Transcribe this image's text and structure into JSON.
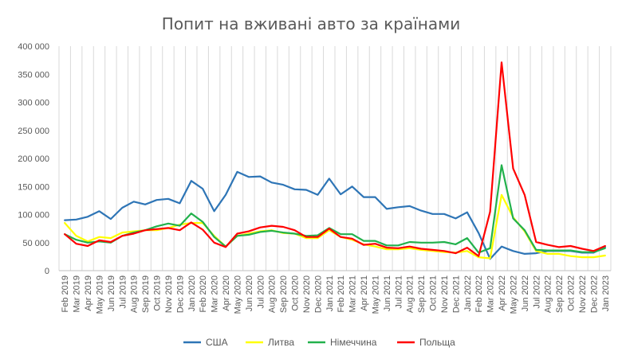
{
  "chart_data": {
    "type": "line",
    "title": "Попит на вживані авто за країнами",
    "xlabel": "",
    "ylabel": "",
    "ylim": [
      0,
      400000
    ],
    "y_ticks": [
      "0",
      "50 000",
      "100 000",
      "150 000",
      "200 000",
      "250 000",
      "300 000",
      "350 000",
      "400 000"
    ],
    "y_tick_values": [
      0,
      50000,
      100000,
      150000,
      200000,
      250000,
      300000,
      350000,
      400000
    ],
    "grid": "vertical",
    "legend_position": "bottom",
    "categories": [
      "Feb 2019",
      "Mar 2019",
      "Apr 2019",
      "May 2019",
      "Jun 2019",
      "Jul 2019",
      "Aug 2019",
      "Sep 2019",
      "Oct 2019",
      "Nov 2019",
      "Dec 2019",
      "Jan 2020",
      "Feb 2020",
      "Mar 2020",
      "Apr 2020",
      "May 2020",
      "Jun 2020",
      "Jul 2020",
      "Aug 2020",
      "Sep 2020",
      "Oct 2020",
      "Nov 2020",
      "Dec 2020",
      "Jan 2021",
      "Feb 2021",
      "Mar 2021",
      "Apr 2021",
      "May 2021",
      "Jun 2021",
      "Jul 2021",
      "Aug 2021",
      "Sep 2021",
      "Oct 2021",
      "Nov 2021",
      "Dec 2021",
      "Jan 2022",
      "Feb 2022",
      "Mar 2022",
      "Apr 2022",
      "May 2022",
      "Jun 2022",
      "Jul 2022",
      "Aug 2022",
      "Sep 2022",
      "Oct 2022",
      "Nov 2022",
      "Dec 2022",
      "Jan 2023"
    ],
    "series": [
      {
        "name": "США",
        "color": "#2E75B6",
        "values": [
          90000,
          91000,
          96000,
          106000,
          92000,
          112000,
          123000,
          118000,
          126000,
          128000,
          120000,
          160000,
          146000,
          106000,
          135000,
          176000,
          167000,
          168000,
          157000,
          153000,
          145000,
          144000,
          135000,
          164000,
          136000,
          150000,
          131000,
          131000,
          110000,
          113000,
          115000,
          107000,
          101000,
          101000,
          93000,
          104000,
          67000,
          21000,
          43000,
          35000,
          30000,
          31000,
          35000,
          35000,
          35000,
          32000,
          32000,
          42000
        ]
      },
      {
        "name": "Литва",
        "color": "#FFFF00",
        "values": [
          85000,
          62000,
          52000,
          60000,
          58000,
          68000,
          70000,
          72000,
          72000,
          76000,
          82000,
          85000,
          85000,
          62000,
          43000,
          62000,
          66000,
          70000,
          72000,
          67000,
          66000,
          58000,
          58000,
          72000,
          60000,
          55000,
          47000,
          43000,
          38000,
          38000,
          40000,
          37000,
          35000,
          33000,
          32000,
          35000,
          24000,
          22000,
          135000,
          95000,
          70000,
          35000,
          30000,
          30000,
          26000,
          24000,
          24000,
          27000
        ]
      },
      {
        "name": "Німеччина",
        "color": "#22B14C",
        "values": [
          65000,
          55000,
          50000,
          52000,
          50000,
          62000,
          68000,
          72000,
          79000,
          84000,
          80000,
          102000,
          87000,
          60000,
          43000,
          62000,
          64000,
          69000,
          71000,
          68000,
          66000,
          62000,
          63000,
          76000,
          65000,
          65000,
          53000,
          53000,
          45000,
          45000,
          51000,
          50000,
          50000,
          51000,
          47000,
          58000,
          32000,
          40000,
          188000,
          93000,
          72000,
          37000,
          36000,
          36000,
          36000,
          33000,
          33000,
          40000
        ]
      },
      {
        "name": "Польща",
        "color": "#FF0000",
        "values": [
          65000,
          48000,
          44000,
          54000,
          51000,
          62000,
          66000,
          72000,
          74000,
          76000,
          72000,
          86000,
          73000,
          50000,
          42000,
          66000,
          70000,
          77000,
          80000,
          78000,
          72000,
          60000,
          60000,
          75000,
          60000,
          57000,
          46000,
          48000,
          41000,
          40000,
          43000,
          39000,
          37000,
          35000,
          31000,
          41000,
          26000,
          105000,
          371000,
          182000,
          135000,
          51000,
          46000,
          42000,
          44000,
          39000,
          35000,
          44000
        ]
      }
    ]
  }
}
